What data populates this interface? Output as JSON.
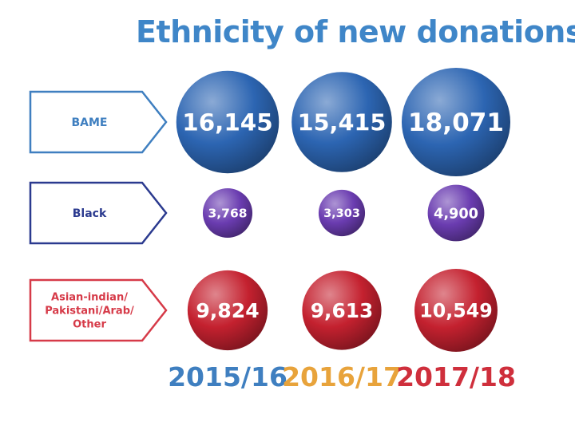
{
  "title": "Ethnicity of new donations",
  "chart_data": {
    "type": "bubble",
    "title": "Ethnicity of new donations",
    "categories": [
      "2015/16",
      "2016/17",
      "2017/18"
    ],
    "series": [
      {
        "name": "BAME",
        "values": [
          16145,
          15415,
          18071
        ],
        "labels": [
          "16,145",
          "15,415",
          "18,071"
        ],
        "color": "#2c65b2"
      },
      {
        "name": "Black",
        "values": [
          3768,
          3303,
          4900
        ],
        "labels": [
          "3,768",
          "3,303",
          "4,900"
        ],
        "color": "#6a3cb0"
      },
      {
        "name": "Asian-indian/\nPakistani/Arab/\nOther",
        "values": [
          9824,
          9613,
          10549
        ],
        "labels": [
          "9,824",
          "9,613",
          "10,549"
        ],
        "color": "#c4212f"
      }
    ],
    "year_colors": [
      "#3f7fc0",
      "#e8a33b",
      "#cf2f3c"
    ],
    "row_label_colors": [
      "#3f7fc0",
      "#2b3a8f",
      "#d63a48"
    ]
  }
}
